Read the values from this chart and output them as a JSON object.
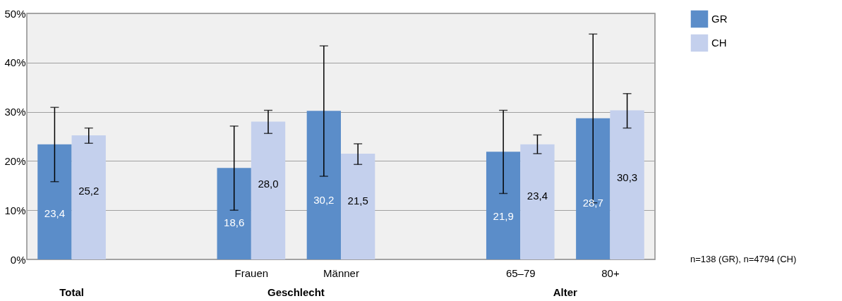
{
  "chart_data": {
    "type": "bar",
    "categories": [
      null,
      null,
      "Frauen",
      "Männer",
      null,
      "65–79",
      "80+"
    ],
    "series": [
      {
        "name": "GR",
        "color": "#5b8dc9",
        "values": [
          23.4,
          null,
          18.6,
          30.2,
          null,
          21.9,
          28.7
        ],
        "value_labels": [
          "23,4",
          null,
          "18,6",
          "30,2",
          null,
          "21,9",
          "28,7"
        ],
        "errors": [
          [
            15.8,
            30.9
          ],
          null,
          [
            10.0,
            27.1
          ],
          [
            16.9,
            43.4
          ],
          null,
          [
            13.4,
            30.3
          ],
          [
            11.5,
            45.8
          ]
        ]
      },
      {
        "name": "CH",
        "color": "#c4d0ed",
        "values": [
          25.2,
          null,
          28.0,
          21.5,
          null,
          23.4,
          30.3
        ],
        "value_labels": [
          "25,2",
          null,
          "28,0",
          "21,5",
          null,
          "23,4",
          "30,3"
        ],
        "errors": [
          [
            23.6,
            26.7
          ],
          null,
          [
            25.6,
            30.3
          ],
          [
            19.3,
            23.5
          ],
          null,
          [
            21.5,
            25.3
          ],
          [
            26.7,
            33.7
          ]
        ]
      }
    ],
    "ylim": [
      0,
      50
    ],
    "yticks": [
      {
        "value": 0,
        "label": "0%"
      },
      {
        "value": 10,
        "label": "10%"
      },
      {
        "value": 20,
        "label": "20%"
      },
      {
        "value": 30,
        "label": "30%"
      },
      {
        "value": 40,
        "label": "40%"
      },
      {
        "value": 50,
        "label": "50%"
      }
    ],
    "grid": "y",
    "legend": "top right",
    "annotations": [
      "Total",
      "Geschlecht",
      "Alter",
      "n=138 (GR), n=4794 (CH)"
    ]
  }
}
